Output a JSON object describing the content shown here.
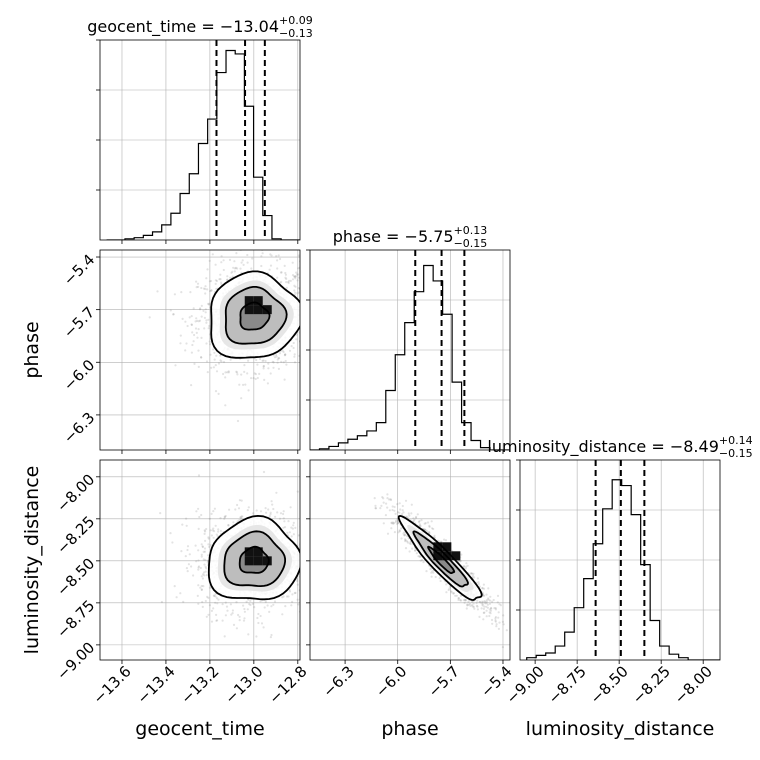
{
  "chart_data": {
    "type": "corner",
    "parameters": [
      {
        "name": "geocent_time",
        "label": "geocent_time",
        "range": [
          -13.7,
          -12.79
        ],
        "ticks": [
          -13.6,
          -13.4,
          -13.2,
          -13.0,
          -12.8
        ],
        "tick_labels": [
          "−13.6",
          "−13.4",
          "−13.2",
          "−13.0",
          "−12.8"
        ],
        "title_main": "geocent_time = −13.04",
        "title_plus": "+0.09",
        "title_minus": "−0.13",
        "quantiles": [
          -13.17,
          -13.04,
          -12.95
        ],
        "hist_edges_start": -13.67,
        "hist_bin_width": 0.0418,
        "hist_counts": [
          0,
          0,
          1,
          2,
          4,
          7,
          13,
          23,
          40,
          57,
          83,
          104,
          144,
          163,
          160,
          115,
          54,
          21,
          1,
          0,
          0
        ],
        "hist_max": 172
      },
      {
        "name": "phase",
        "label": "phase",
        "range": [
          -6.5,
          -5.36
        ],
        "ticks": [
          -6.3,
          -6.0,
          -5.7,
          -5.4
        ],
        "tick_labels": [
          "−6.3",
          "−6.0",
          "−5.7",
          "−5.4"
        ],
        "title_main": "phase = −5.75",
        "title_plus": "+0.13",
        "title_minus": "−0.15",
        "quantiles": [
          -5.9,
          -5.75,
          -5.62
        ],
        "hist_edges_start": -6.5,
        "hist_bin_width": 0.054,
        "hist_counts": [
          0,
          1,
          3,
          6,
          9,
          12,
          16,
          23,
          50,
          80,
          107,
          133,
          155,
          142,
          114,
          57,
          23,
          8,
          2,
          0,
          0
        ],
        "hist_max": 168
      },
      {
        "name": "luminosity_distance",
        "label": "luminosity_distance",
        "range": [
          -9.09,
          -7.9
        ],
        "ticks": [
          -9.0,
          -8.75,
          -8.5,
          -8.25,
          -8.0
        ],
        "tick_labels": [
          "−9.00",
          "−8.75",
          "−8.50",
          "−8.25",
          "−8.00"
        ],
        "title_main": "luminosity_distance = −8.49",
        "title_plus": "+0.14",
        "title_minus": "−0.15",
        "quantiles": [
          -8.64,
          -8.49,
          -8.35
        ],
        "hist_edges_start": -9.05,
        "hist_bin_width": 0.0565,
        "hist_counts": [
          2,
          4,
          6,
          12,
          24,
          45,
          70,
          100,
          130,
          155,
          150,
          125,
          82,
          34,
          12,
          5,
          2,
          0,
          0,
          0,
          0
        ],
        "hist_max": 172
      }
    ],
    "pairs": [
      {
        "x": "geocent_time",
        "y": "phase",
        "mean": [
          -13.0,
          -5.74
        ],
        "sd": [
          0.12,
          0.14
        ],
        "rho": 0.05,
        "contour_scales": [
          0.55,
          1.15,
          1.75
        ],
        "peak": [
          -12.98,
          -5.7
        ]
      },
      {
        "x": "geocent_time",
        "y": "luminosity_distance",
        "mean": [
          -13.0,
          -8.5
        ],
        "sd": [
          0.12,
          0.14
        ],
        "rho": 0.05,
        "contour_scales": [
          0.55,
          1.15,
          1.75
        ],
        "peak": [
          -12.98,
          -8.5
        ]
      },
      {
        "x": "phase",
        "y": "luminosity_distance",
        "mean": [
          -5.75,
          -8.5
        ],
        "sd": [
          0.13,
          0.14
        ],
        "rho": -0.93,
        "contour_scales": [
          0.55,
          1.15,
          1.75
        ],
        "peak": [
          -5.72,
          -8.47
        ]
      }
    ],
    "grid": true,
    "sample_color": "#808080"
  }
}
